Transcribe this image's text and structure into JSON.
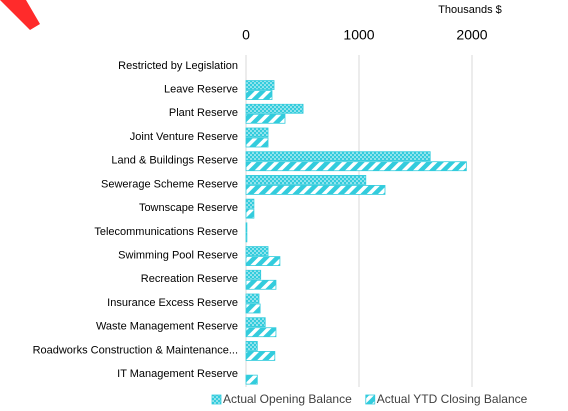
{
  "chart_data": {
    "type": "bar",
    "orientation": "horizontal",
    "x_axis_label": "Thousands $",
    "categories": [
      "Restricted by Legislation",
      "Leave Reserve",
      "Plant Reserve",
      "Joint Venture Reserve",
      "Land & Buildings Reserve",
      "Sewerage Scheme Reserve",
      "Townscape Reserve",
      "Telecommunications Reserve",
      "Swimming Pool Reserve",
      "Recreation Reserve",
      "Insurance Excess Reserve",
      "Waste Management Reserve",
      "Roadworks Construction & Maintenance...",
      "IT Management Reserve"
    ],
    "series": [
      {
        "name": "Actual Opening Balance",
        "color": "#33ccdd",
        "pattern": "dots",
        "values": [
          0,
          248,
          505,
          195,
          1630,
          1060,
          70,
          8,
          195,
          130,
          115,
          170,
          100,
          0
        ]
      },
      {
        "name": "Actual YTD Closing Balance",
        "color": "#33ccdd",
        "pattern": "stripes",
        "values": [
          0,
          230,
          345,
          195,
          1950,
          1230,
          70,
          8,
          300,
          265,
          125,
          265,
          255,
          100
        ]
      }
    ],
    "xlim": [
      0,
      2500
    ],
    "xticks": [
      0,
      1000,
      2000
    ],
    "grid": true,
    "legend": "bottom"
  }
}
